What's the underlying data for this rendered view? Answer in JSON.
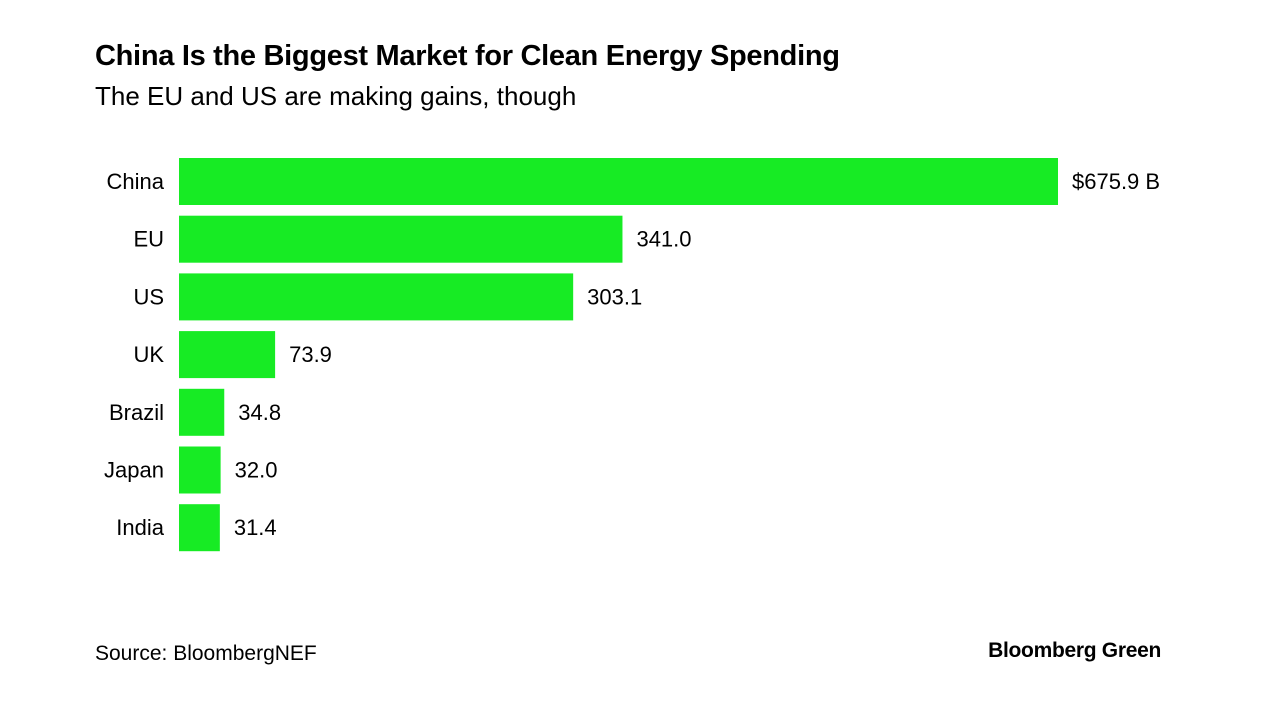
{
  "header": {
    "title": "China Is the Biggest Market for Clean Energy Spending",
    "subtitle": "The EU and US are making gains, though"
  },
  "footer": {
    "source": "Source: BloombergNEF",
    "brand": "Bloomberg Green"
  },
  "colors": {
    "bar": "#17eb24",
    "text": "#000000",
    "background": "#ffffff"
  },
  "chart_data": {
    "type": "bar",
    "orientation": "horizontal",
    "categories": [
      "China",
      "EU",
      "US",
      "UK",
      "Brazil",
      "Japan",
      "India"
    ],
    "values": [
      675.9,
      341.0,
      303.1,
      73.9,
      34.8,
      32.0,
      31.4
    ],
    "value_labels": [
      "$675.9 B",
      "341.0",
      "303.1",
      "73.9",
      "34.8",
      "32.0",
      "31.4"
    ],
    "title": "China Is the Biggest Market for Clean Energy Spending",
    "subtitle": "The EU and US are making gains, though",
    "xlim": [
      0,
      675.9
    ],
    "grid": false,
    "legend": "none"
  }
}
